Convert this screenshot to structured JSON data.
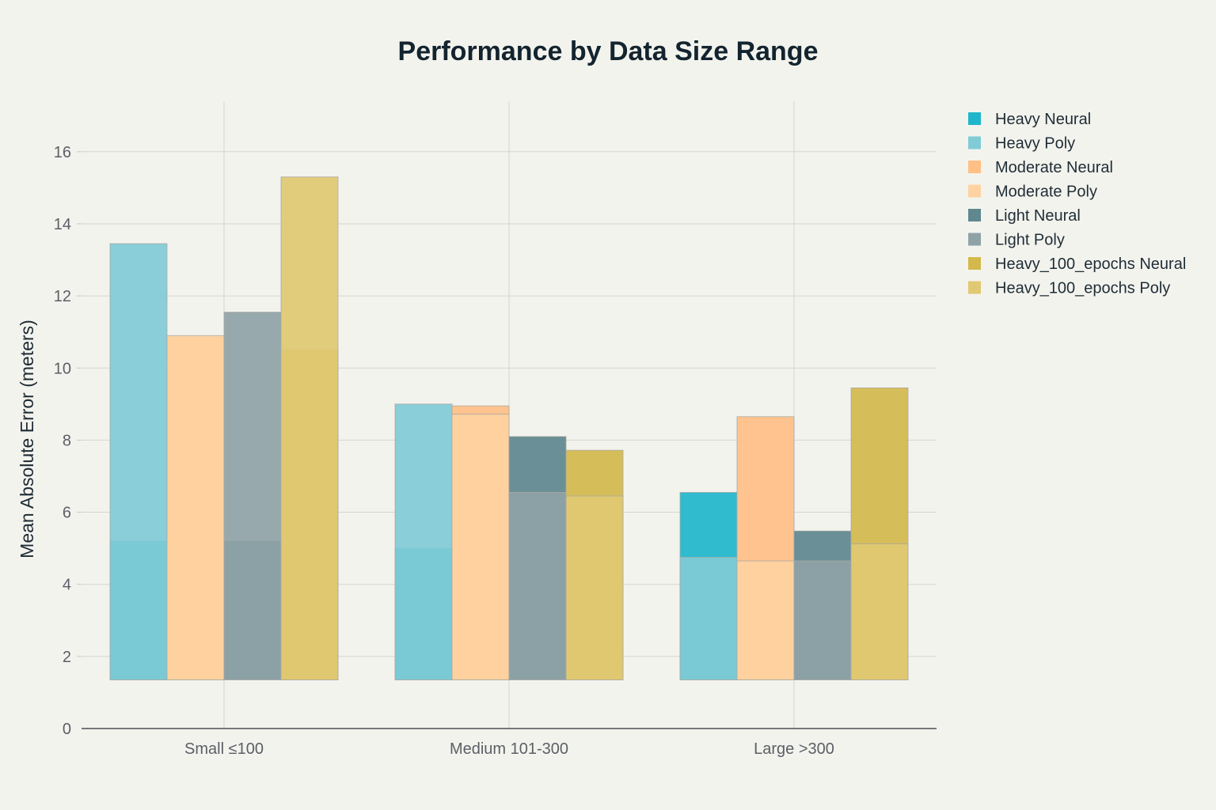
{
  "chart_data": {
    "type": "bar",
    "title": "Performance by Data Size Range",
    "xlabel": "",
    "ylabel": "Mean Absolute Error (meters)",
    "ylim": [
      0,
      17.4
    ],
    "yticks": [
      0,
      2,
      4,
      6,
      8,
      10,
      12,
      14,
      16
    ],
    "categories": [
      "Small ≤100",
      "Medium 101-300",
      "Large >300"
    ],
    "grid": true,
    "legend_position": "top-right",
    "bar_base": 1.35,
    "series": [
      {
        "name": "Heavy Neural",
        "color": "#1fb6cc",
        "values": [
          5.2,
          5.0,
          6.55
        ]
      },
      {
        "name": "Heavy Poly",
        "color": "#80cbd6",
        "values": [
          13.45,
          9.0,
          4.75
        ]
      },
      {
        "name": "Moderate Neural",
        "color": "#ffbf85",
        "values": [
          10.85,
          8.95,
          8.65
        ]
      },
      {
        "name": "Moderate Poly",
        "color": "#fed3a1",
        "values": [
          10.9,
          8.72,
          4.65
        ]
      },
      {
        "name": "Light Neural",
        "color": "#5e878e",
        "values": [
          5.2,
          8.1,
          5.48
        ]
      },
      {
        "name": "Light Poly",
        "color": "#8fa3a7",
        "values": [
          11.55,
          6.55,
          4.65
        ]
      },
      {
        "name": "Heavy_100_epochs Neural",
        "color": "#d3b94c",
        "values": [
          10.5,
          7.72,
          9.45
        ]
      },
      {
        "name": "Heavy_100_epochs Poly",
        "color": "#e0c972",
        "values": [
          15.3,
          6.45,
          5.12
        ]
      }
    ]
  }
}
